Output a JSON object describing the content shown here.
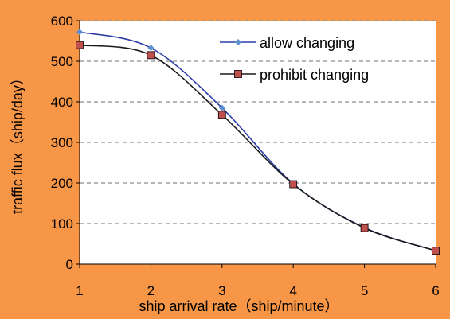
{
  "chart_data": {
    "type": "line",
    "xlabel": "ship arrival rate（ship/minute）",
    "ylabel": "traffic flux（ship/day）",
    "x": [
      1,
      2,
      3,
      4,
      5,
      6
    ],
    "x_ticks": [
      "1",
      "2",
      "3",
      "4",
      "5",
      "6"
    ],
    "y_ticks": [
      "0",
      "100",
      "200",
      "300",
      "400",
      "500",
      "600"
    ],
    "xlim": [
      1,
      6
    ],
    "ylim": [
      0,
      600
    ],
    "grid": "horizontal dashed",
    "legend_position": "top-right",
    "series": [
      {
        "name": "allow changing",
        "marker": "diamond",
        "color": "#2e3ea8",
        "marker_color": "#5b8fd0",
        "values": [
          572,
          533,
          385,
          198,
          90,
          33
        ]
      },
      {
        "name": "prohibit changing",
        "marker": "square",
        "color": "#1a1a1a",
        "marker_color": "#c0504d",
        "values": [
          540,
          515,
          368,
          197,
          89,
          33
        ]
      }
    ],
    "colors": {
      "background": "#f79646",
      "plot_area": "#ffffff",
      "grid": "#8c8c8c"
    }
  }
}
